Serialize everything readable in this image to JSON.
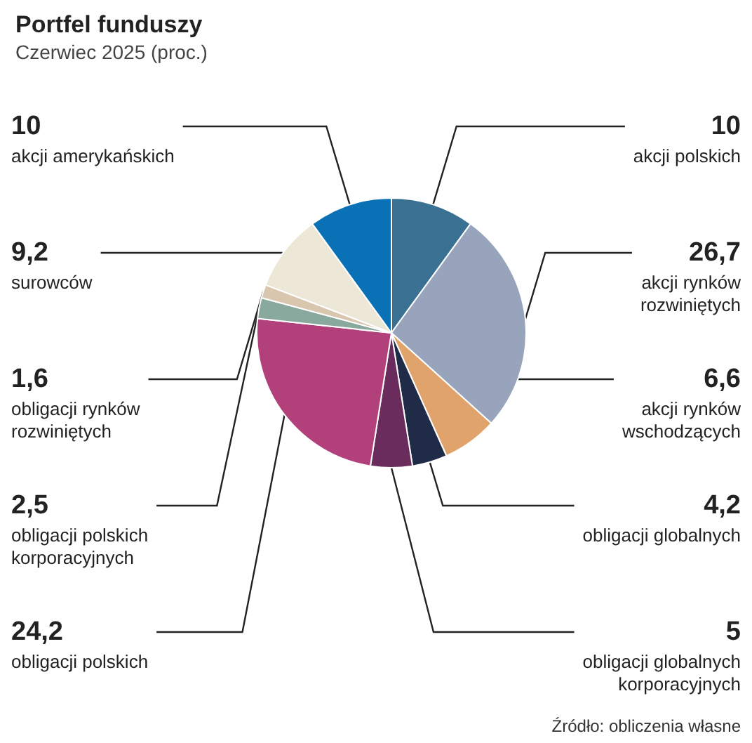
{
  "chart_data": {
    "type": "pie",
    "title": "Portfel funduszy",
    "subtitle": "Czerwiec 2025 (proc.)",
    "categories": [
      "akcji polskich",
      "akcji rynków rozwiniętych",
      "akcji rynków wschodzących",
      "obligacji globalnych",
      "obligacji globalnych korporacyjnych",
      "obligacji polskich",
      "obligacji polskich korporacyjnych",
      "obligacji rynków rozwiniętych",
      "surowców",
      "akcji amerykańskich"
    ],
    "values": [
      10,
      26.7,
      6.6,
      4.2,
      5,
      24.2,
      2.5,
      1.6,
      9.2,
      10
    ],
    "value_labels": [
      "10",
      "26,7",
      "6,6",
      "4,2",
      "5",
      "24,2",
      "2,5",
      "1,6",
      "9,2",
      "10"
    ],
    "colors": [
      "#3a7192",
      "#97a4bc",
      "#e0a36b",
      "#1f2b47",
      "#6a2c5c",
      "#b2407b",
      "#8aa99e",
      "#d9c6ae",
      "#ece7d6",
      "#0a71b7"
    ],
    "annotations": [
      "Źródło: obliczenia własne"
    ],
    "legend": false
  }
}
